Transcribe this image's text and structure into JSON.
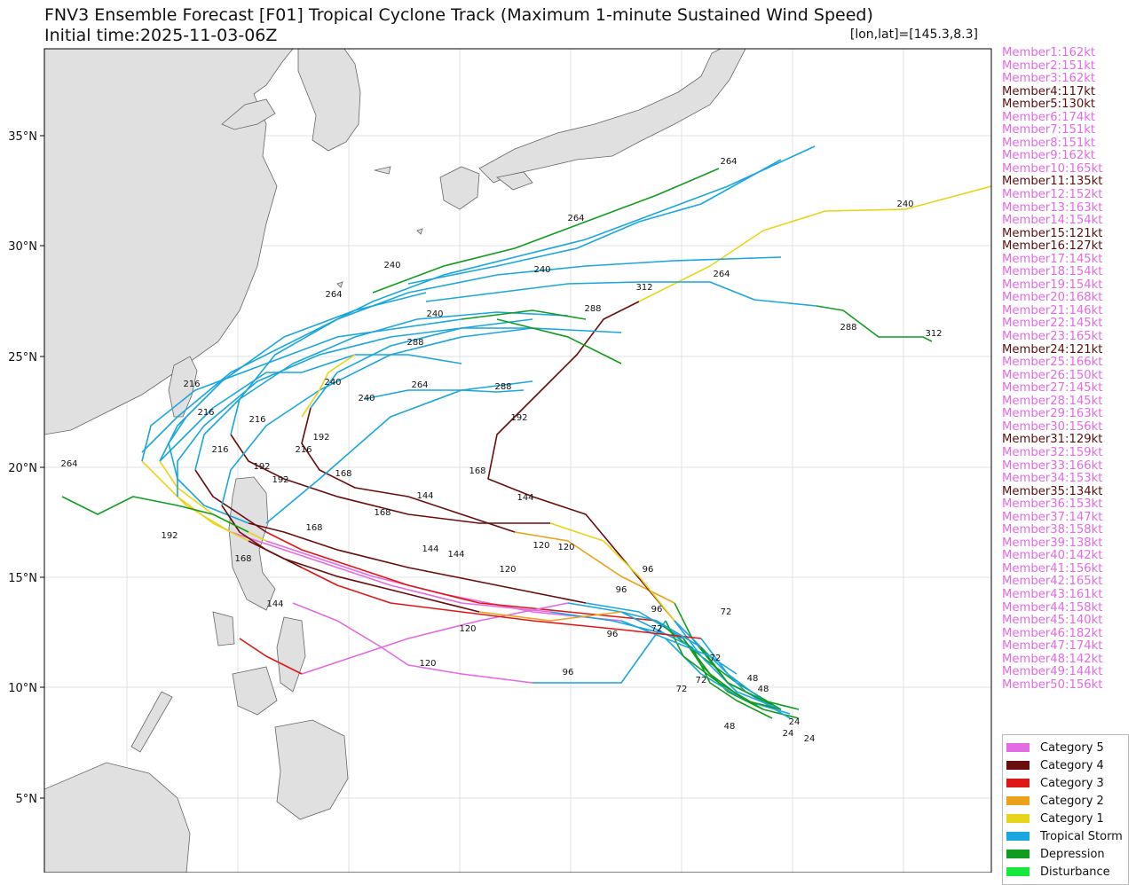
{
  "header": {
    "title": "FNV3 Ensemble Forecast [F01] Tropical Cyclone Track (Maximum 1-minute Sustained Wind Speed)",
    "initial_time": "Initial time:2025-11-03-06Z",
    "coordinate_readout": "[lon,lat]=[145.3,8.3]"
  },
  "map": {
    "lat_labels": [
      "35°N",
      "30°N",
      "25°N",
      "20°N",
      "15°N",
      "10°N",
      "5°N"
    ],
    "land_color": "#e0e0e0",
    "ocean_color": "#ffffff",
    "track_hour_labels": [
      "24",
      "48",
      "72",
      "96",
      "120",
      "144",
      "168",
      "192",
      "216",
      "240",
      "264",
      "288",
      "312"
    ]
  },
  "members": [
    {
      "label": "Member1:162kt",
      "color": "#e36be3"
    },
    {
      "label": "Member2:151kt",
      "color": "#e36be3"
    },
    {
      "label": "Member3:162kt",
      "color": "#e36be3"
    },
    {
      "label": "Member4:117kt",
      "color": "#5a0f0f"
    },
    {
      "label": "Member5:130kt",
      "color": "#5a0f0f"
    },
    {
      "label": "Member6:174kt",
      "color": "#e36be3"
    },
    {
      "label": "Member7:151kt",
      "color": "#e36be3"
    },
    {
      "label": "Member8:151kt",
      "color": "#e36be3"
    },
    {
      "label": "Member9:162kt",
      "color": "#e36be3"
    },
    {
      "label": "Member10:165kt",
      "color": "#e36be3"
    },
    {
      "label": "Member11:135kt",
      "color": "#5a0f0f"
    },
    {
      "label": "Member12:152kt",
      "color": "#e36be3"
    },
    {
      "label": "Member13:163kt",
      "color": "#e36be3"
    },
    {
      "label": "Member14:154kt",
      "color": "#e36be3"
    },
    {
      "label": "Member15:121kt",
      "color": "#5a0f0f"
    },
    {
      "label": "Member16:127kt",
      "color": "#5a0f0f"
    },
    {
      "label": "Member17:145kt",
      "color": "#e36be3"
    },
    {
      "label": "Member18:154kt",
      "color": "#e36be3"
    },
    {
      "label": "Member19:154kt",
      "color": "#e36be3"
    },
    {
      "label": "Member20:168kt",
      "color": "#e36be3"
    },
    {
      "label": "Member21:146kt",
      "color": "#e36be3"
    },
    {
      "label": "Member22:145kt",
      "color": "#e36be3"
    },
    {
      "label": "Member23:165kt",
      "color": "#e36be3"
    },
    {
      "label": "Member24:121kt",
      "color": "#5a0f0f"
    },
    {
      "label": "Member25:166kt",
      "color": "#e36be3"
    },
    {
      "label": "Member26:150kt",
      "color": "#e36be3"
    },
    {
      "label": "Member27:145kt",
      "color": "#e36be3"
    },
    {
      "label": "Member28:145kt",
      "color": "#e36be3"
    },
    {
      "label": "Member29:163kt",
      "color": "#e36be3"
    },
    {
      "label": "Member30:156kt",
      "color": "#e36be3"
    },
    {
      "label": "Member31:129kt",
      "color": "#5a0f0f"
    },
    {
      "label": "Member32:159kt",
      "color": "#e36be3"
    },
    {
      "label": "Member33:166kt",
      "color": "#e36be3"
    },
    {
      "label": "Member34:153kt",
      "color": "#e36be3"
    },
    {
      "label": "Member35:134kt",
      "color": "#5a0f0f"
    },
    {
      "label": "Member36:153kt",
      "color": "#e36be3"
    },
    {
      "label": "Member37:147kt",
      "color": "#e36be3"
    },
    {
      "label": "Member38:158kt",
      "color": "#e36be3"
    },
    {
      "label": "Member39:138kt",
      "color": "#e36be3"
    },
    {
      "label": "Member40:142kt",
      "color": "#e36be3"
    },
    {
      "label": "Member41:156kt",
      "color": "#e36be3"
    },
    {
      "label": "Member42:165kt",
      "color": "#e36be3"
    },
    {
      "label": "Member43:161kt",
      "color": "#e36be3"
    },
    {
      "label": "Member44:158kt",
      "color": "#e36be3"
    },
    {
      "label": "Member45:140kt",
      "color": "#e36be3"
    },
    {
      "label": "Member46:182kt",
      "color": "#e36be3"
    },
    {
      "label": "Member47:174kt",
      "color": "#e36be3"
    },
    {
      "label": "Member48:142kt",
      "color": "#e36be3"
    },
    {
      "label": "Member49:144kt",
      "color": "#e36be3"
    },
    {
      "label": "Member50:156kt",
      "color": "#e36be3"
    }
  ],
  "legend": [
    {
      "label": "Category 5",
      "color": "#e36be3"
    },
    {
      "label": "Category 4",
      "color": "#6b0d0d"
    },
    {
      "label": "Category 3",
      "color": "#e01515"
    },
    {
      "label": "Category 2",
      "color": "#eba21a"
    },
    {
      "label": "Category 1",
      "color": "#e8d41a"
    },
    {
      "label": "Tropical Storm",
      "color": "#1aa6de"
    },
    {
      "label": "Depression",
      "color": "#129c1f"
    },
    {
      "label": "Disturbance",
      "color": "#17e83c"
    }
  ]
}
